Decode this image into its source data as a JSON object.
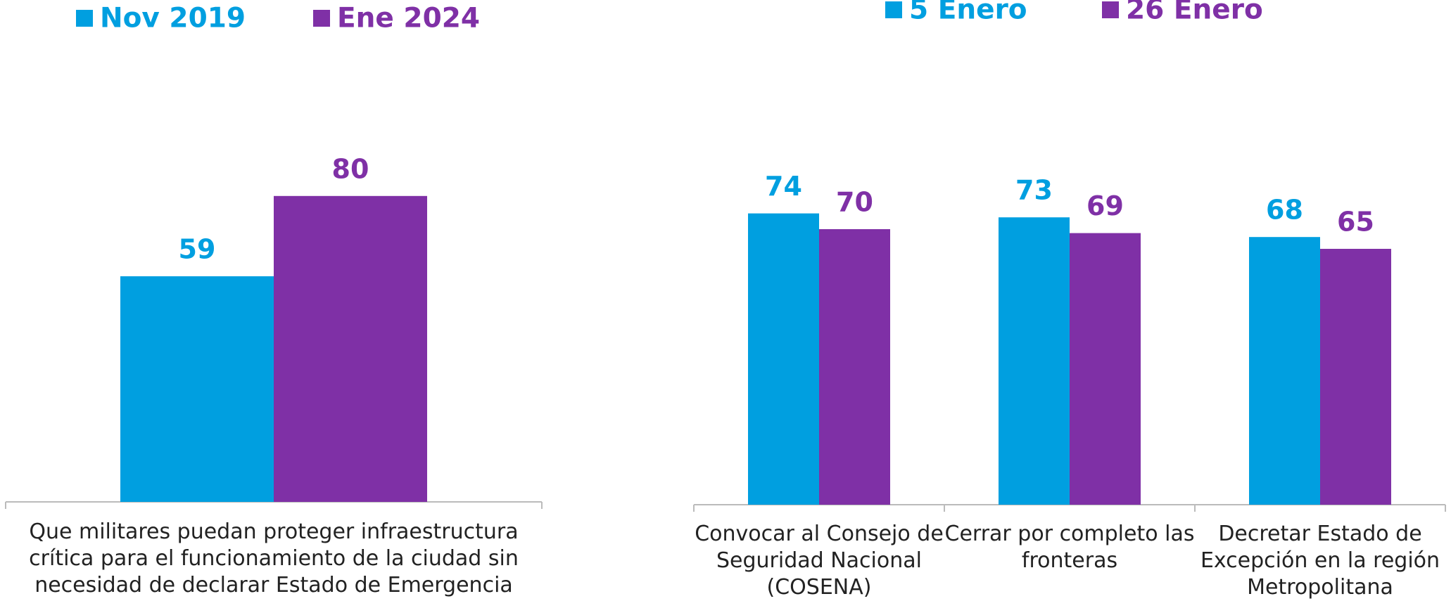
{
  "chart_data": [
    {
      "type": "bar",
      "categories": [
        "Que militares puedan proteger infraestructura crítica para el funcionamiento de la ciudad sin necesidad de declarar Estado de Emergencia"
      ],
      "series": [
        {
          "name": "Nov 2019",
          "color": "#009fe0",
          "values": [
            59
          ]
        },
        {
          "name": "Ene 2024",
          "color": "#7f30a6",
          "values": [
            80
          ]
        }
      ]
    },
    {
      "type": "bar",
      "categories": [
        "Convocar al Consejo de Seguridad Nacional (COSENA)",
        "Cerrar por completo las fronteras",
        "Decretar Estado de Excepción en la región Metropolitana"
      ],
      "series": [
        {
          "name": "5 Enero",
          "color": "#009fe0",
          "values": [
            74,
            73,
            68
          ]
        },
        {
          "name": "26 Enero",
          "color": "#7f30a6",
          "values": [
            70,
            69,
            65
          ]
        }
      ]
    }
  ]
}
